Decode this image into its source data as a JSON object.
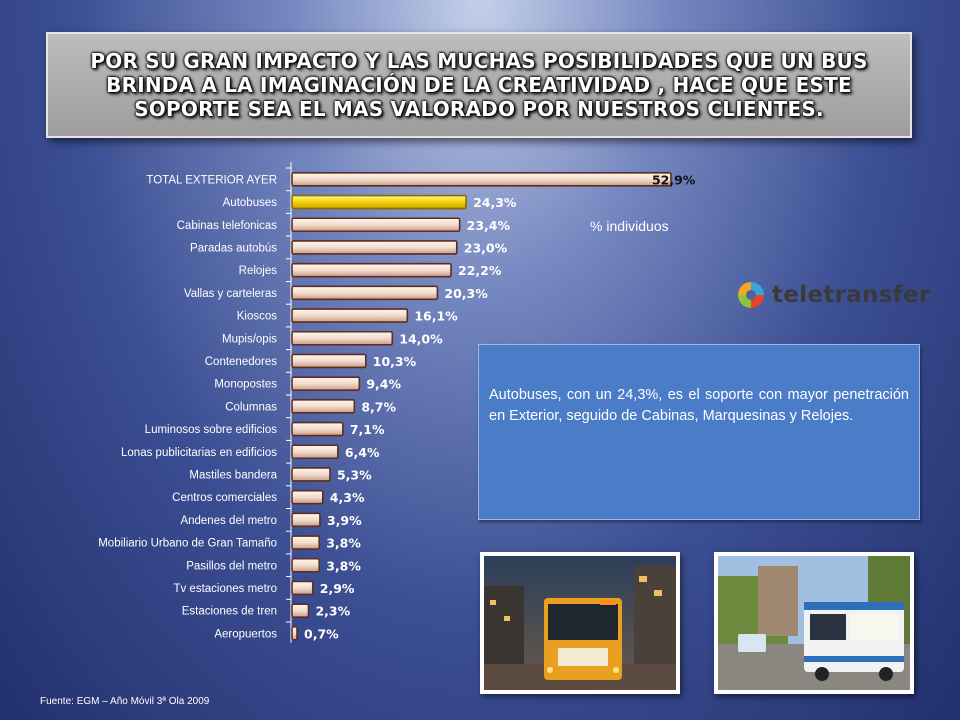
{
  "banner": {
    "lines": [
      "POR SU GRAN IMPACTO Y LAS MUCHAS POSIBILIDADES QUE UN BUS",
      "BRINDA A LA IMAGINACIÓN DE LA CREATIVIDAD , HACE QUE ESTE",
      "SOPORTE SEA EL MAS VALORADO POR NUESTROS CLIENTES."
    ]
  },
  "chart_data": {
    "type": "bar",
    "orientation": "horizontal",
    "categories": [
      "TOTAL EXTERIOR AYER",
      "Autobuses",
      "Cabinas telefonicas",
      "Paradas autobús",
      "Relojes",
      "Vallas y carteleras",
      "Kioscos",
      "Mupis/opis",
      "Contenedores",
      "Monopostes",
      "Columnas",
      "Luminosos sobre edificios",
      "Lonas publicitarias en edificios",
      "Mastiles bandera",
      "Centros comerciales",
      "Andenes del metro",
      "Mobiliario Urbano de Gran Tamaño",
      "Pasillos del metro",
      "Tv estaciones metro",
      "Estaciones de tren",
      "Aeropuertos"
    ],
    "values": [
      52.9,
      24.3,
      23.4,
      23.0,
      22.2,
      20.3,
      16.1,
      14.0,
      10.3,
      9.4,
      8.7,
      7.1,
      6.4,
      5.3,
      4.3,
      3.9,
      3.8,
      3.8,
      2.9,
      2.3,
      0.7
    ],
    "value_labels": [
      "52,9%",
      "24,3%",
      "23,4%",
      "23,0%",
      "22,2%",
      "20,3%",
      "16,1%",
      "14,0%",
      "10,3%",
      "9,4%",
      "8,7%",
      "7,1%",
      "6,4%",
      "5,3%",
      "4,3%",
      "3,9%",
      "3,8%",
      "3,8%",
      "2,9%",
      "2,3%",
      "0,7%"
    ],
    "highlight": "Autobuses",
    "unit_label": "% individuos",
    "xlim": [
      0,
      55
    ],
    "colors": {
      "bar": "#f3dccc",
      "bar_edge": "#5a2e22",
      "highlight": "#f2d400",
      "highlight_edge": "#8a6b00"
    }
  },
  "logo": {
    "name": "teletransfer",
    "icon": "teletransfer-logo-icon"
  },
  "info_box": {
    "text": "Autobuses, con un 24,3%, es el soporte con mayor penetración en Exterior, seguido de Cabinas, Marquesinas y Relojes."
  },
  "photos": [
    {
      "icon": "bus-night-photo"
    },
    {
      "icon": "bus-barcelona-photo"
    }
  ],
  "source": "Fuente: EGM – Año Móvil 3ª Ola 2009"
}
